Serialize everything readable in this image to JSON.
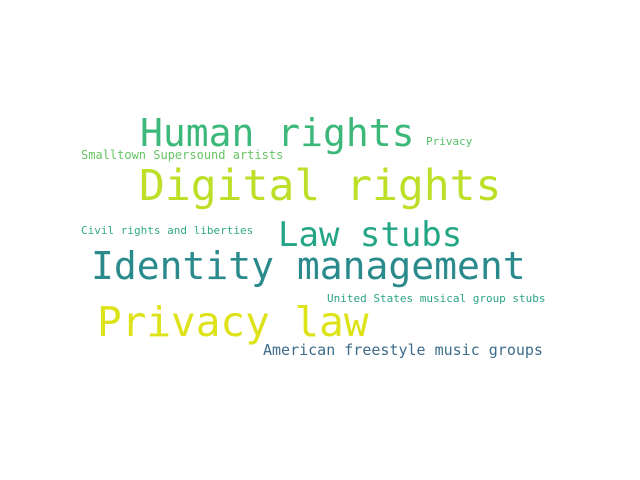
{
  "word_cloud": {
    "words": [
      {
        "id": "w-human",
        "text": "Human rights",
        "color": "#3cb87a"
      },
      {
        "id": "w-privacy",
        "text": "Privacy",
        "color": "#57c16a"
      },
      {
        "id": "w-smalltown",
        "text": "Smalltown Supersound artists",
        "color": "#66c563"
      },
      {
        "id": "w-digital",
        "text": "Digital rights",
        "color": "#bddf27"
      },
      {
        "id": "w-civil",
        "text": "Civil rights and liberties",
        "color": "#33ad7d"
      },
      {
        "id": "w-law",
        "text": "Law stubs",
        "color": "#24a686"
      },
      {
        "id": "w-identity",
        "text": "Identity management",
        "color": "#2a8a8c"
      },
      {
        "id": "w-usgroups",
        "text": "United States musical group stubs",
        "color": "#2ba584"
      },
      {
        "id": "w-privlaw",
        "text": "Privacy law",
        "color": "#dde318"
      },
      {
        "id": "w-freestyle",
        "text": "American freestyle music groups",
        "color": "#3e6c8a"
      }
    ]
  }
}
